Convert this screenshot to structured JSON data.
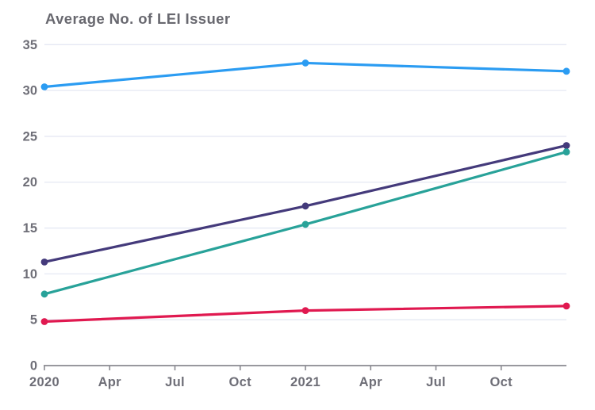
{
  "chart_data": {
    "type": "line",
    "title": "Average No. of LEI Issuer",
    "x_tick_labels": [
      "2020",
      "Apr",
      "Jul",
      "Oct",
      "2021",
      "Apr",
      "Jul",
      "Oct"
    ],
    "y_tick_labels": [
      "0",
      "5",
      "10",
      "15",
      "20",
      "25",
      "30",
      "35"
    ],
    "ylim": [
      0,
      35
    ],
    "grid": "horizontal-only",
    "legend_position": "none",
    "series": [
      {
        "name": "blue-line",
        "color": "#2b9cf2",
        "x_positions": [
          0,
          4,
          8
        ],
        "values": [
          30.4,
          33.0,
          32.1
        ]
      },
      {
        "name": "purple-line",
        "color": "#443a7b",
        "x_positions": [
          0,
          4,
          8
        ],
        "values": [
          11.3,
          17.4,
          24.0
        ]
      },
      {
        "name": "teal-line",
        "color": "#28a299",
        "x_positions": [
          0,
          4,
          8
        ],
        "values": [
          7.8,
          15.4,
          23.3
        ]
      },
      {
        "name": "red-line",
        "color": "#e01950",
        "x_positions": [
          0,
          4,
          8
        ],
        "values": [
          4.8,
          6.0,
          6.5
        ]
      }
    ],
    "colors": {
      "background": "#ffffff",
      "grid": "#e5e8f3",
      "axis": "#8a8a91",
      "tick_label": "#6e6e77",
      "title": "#68686f"
    }
  }
}
